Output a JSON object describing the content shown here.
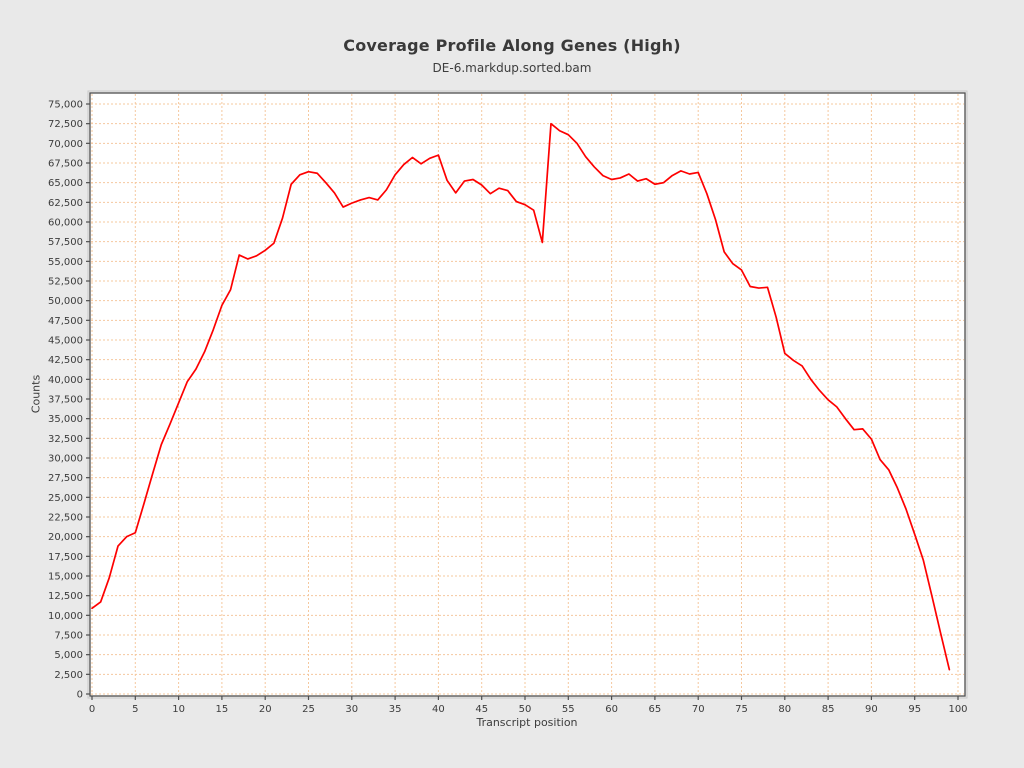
{
  "window": {
    "background": "#e9e9e9"
  },
  "chart_data": {
    "type": "line",
    "title": "Coverage Profile Along Genes (High)",
    "subtitle": "DE-6.markdup.sorted.bam",
    "xlabel": "Transcript position",
    "ylabel": "Counts",
    "xlim": [
      0,
      100
    ],
    "ylim": [
      0,
      75000
    ],
    "x_tick_interval": 5,
    "y_tick_interval": 2500,
    "x_ticks": [
      0,
      5,
      10,
      15,
      20,
      25,
      30,
      35,
      40,
      45,
      50,
      55,
      60,
      65,
      70,
      75,
      80,
      85,
      90,
      95,
      100
    ],
    "y_ticks": [
      0,
      2500,
      5000,
      7500,
      10000,
      12500,
      15000,
      17500,
      20000,
      22500,
      25000,
      27500,
      30000,
      32500,
      35000,
      37500,
      40000,
      42500,
      45000,
      47500,
      50000,
      52500,
      55000,
      57500,
      60000,
      62500,
      65000,
      67500,
      70000,
      72500,
      75000
    ],
    "grid": true,
    "legend_position": "none",
    "colors": {
      "line": "#fe0000",
      "grid": "#f5c89e",
      "plot_background": "#ffffff",
      "frame": "#4f4f4f",
      "outer_frame": "#c9c9c9",
      "text": "#3c3c3c"
    },
    "series": [
      {
        "name": "DE-6.markdup.sorted.bam",
        "color": "#fe0000",
        "x": [
          0,
          1,
          2,
          3,
          4,
          5,
          6,
          7,
          8,
          9,
          10,
          11,
          12,
          13,
          14,
          15,
          16,
          17,
          18,
          19,
          20,
          21,
          22,
          23,
          24,
          25,
          26,
          27,
          28,
          29,
          30,
          31,
          32,
          33,
          34,
          35,
          36,
          37,
          38,
          39,
          40,
          41,
          42,
          43,
          44,
          45,
          46,
          47,
          48,
          49,
          50,
          51,
          52,
          53,
          54,
          55,
          56,
          57,
          58,
          59,
          60,
          61,
          62,
          63,
          64,
          65,
          66,
          67,
          68,
          69,
          70,
          71,
          72,
          73,
          74,
          75,
          76,
          77,
          78,
          79,
          80,
          81,
          82,
          83,
          84,
          85,
          86,
          87,
          88,
          89,
          90,
          91,
          92,
          93,
          94,
          95,
          96,
          97,
          98,
          99
        ],
        "values": [
          10900,
          11700,
          14800,
          18800,
          20000,
          20500,
          24200,
          28000,
          31700,
          34300,
          37000,
          39700,
          41300,
          43500,
          46300,
          49400,
          51400,
          55800,
          55300,
          55700,
          56400,
          57300,
          60500,
          64800,
          66000,
          66400,
          66200,
          65000,
          63700,
          61900,
          62400,
          62800,
          63100,
          62800,
          64100,
          66000,
          67300,
          68200,
          67400,
          68100,
          68500,
          65300,
          63700,
          65200,
          65400,
          64700,
          63600,
          64300,
          64000,
          62600,
          62200,
          61500,
          57400,
          72500,
          71600,
          71100,
          70000,
          68300,
          67000,
          65900,
          65400,
          65600,
          66100,
          65200,
          65500,
          64800,
          65000,
          65900,
          66500,
          66100,
          66300,
          63600,
          60300,
          56200,
          54700,
          53900,
          51800,
          51600,
          51700,
          47900,
          43300,
          42400,
          41700,
          40000,
          38600,
          37400,
          36500,
          35000,
          33600,
          33700,
          32400,
          29800,
          28500,
          26200,
          23500,
          20300,
          17000,
          12400,
          7700,
          3100
        ]
      }
    ]
  }
}
